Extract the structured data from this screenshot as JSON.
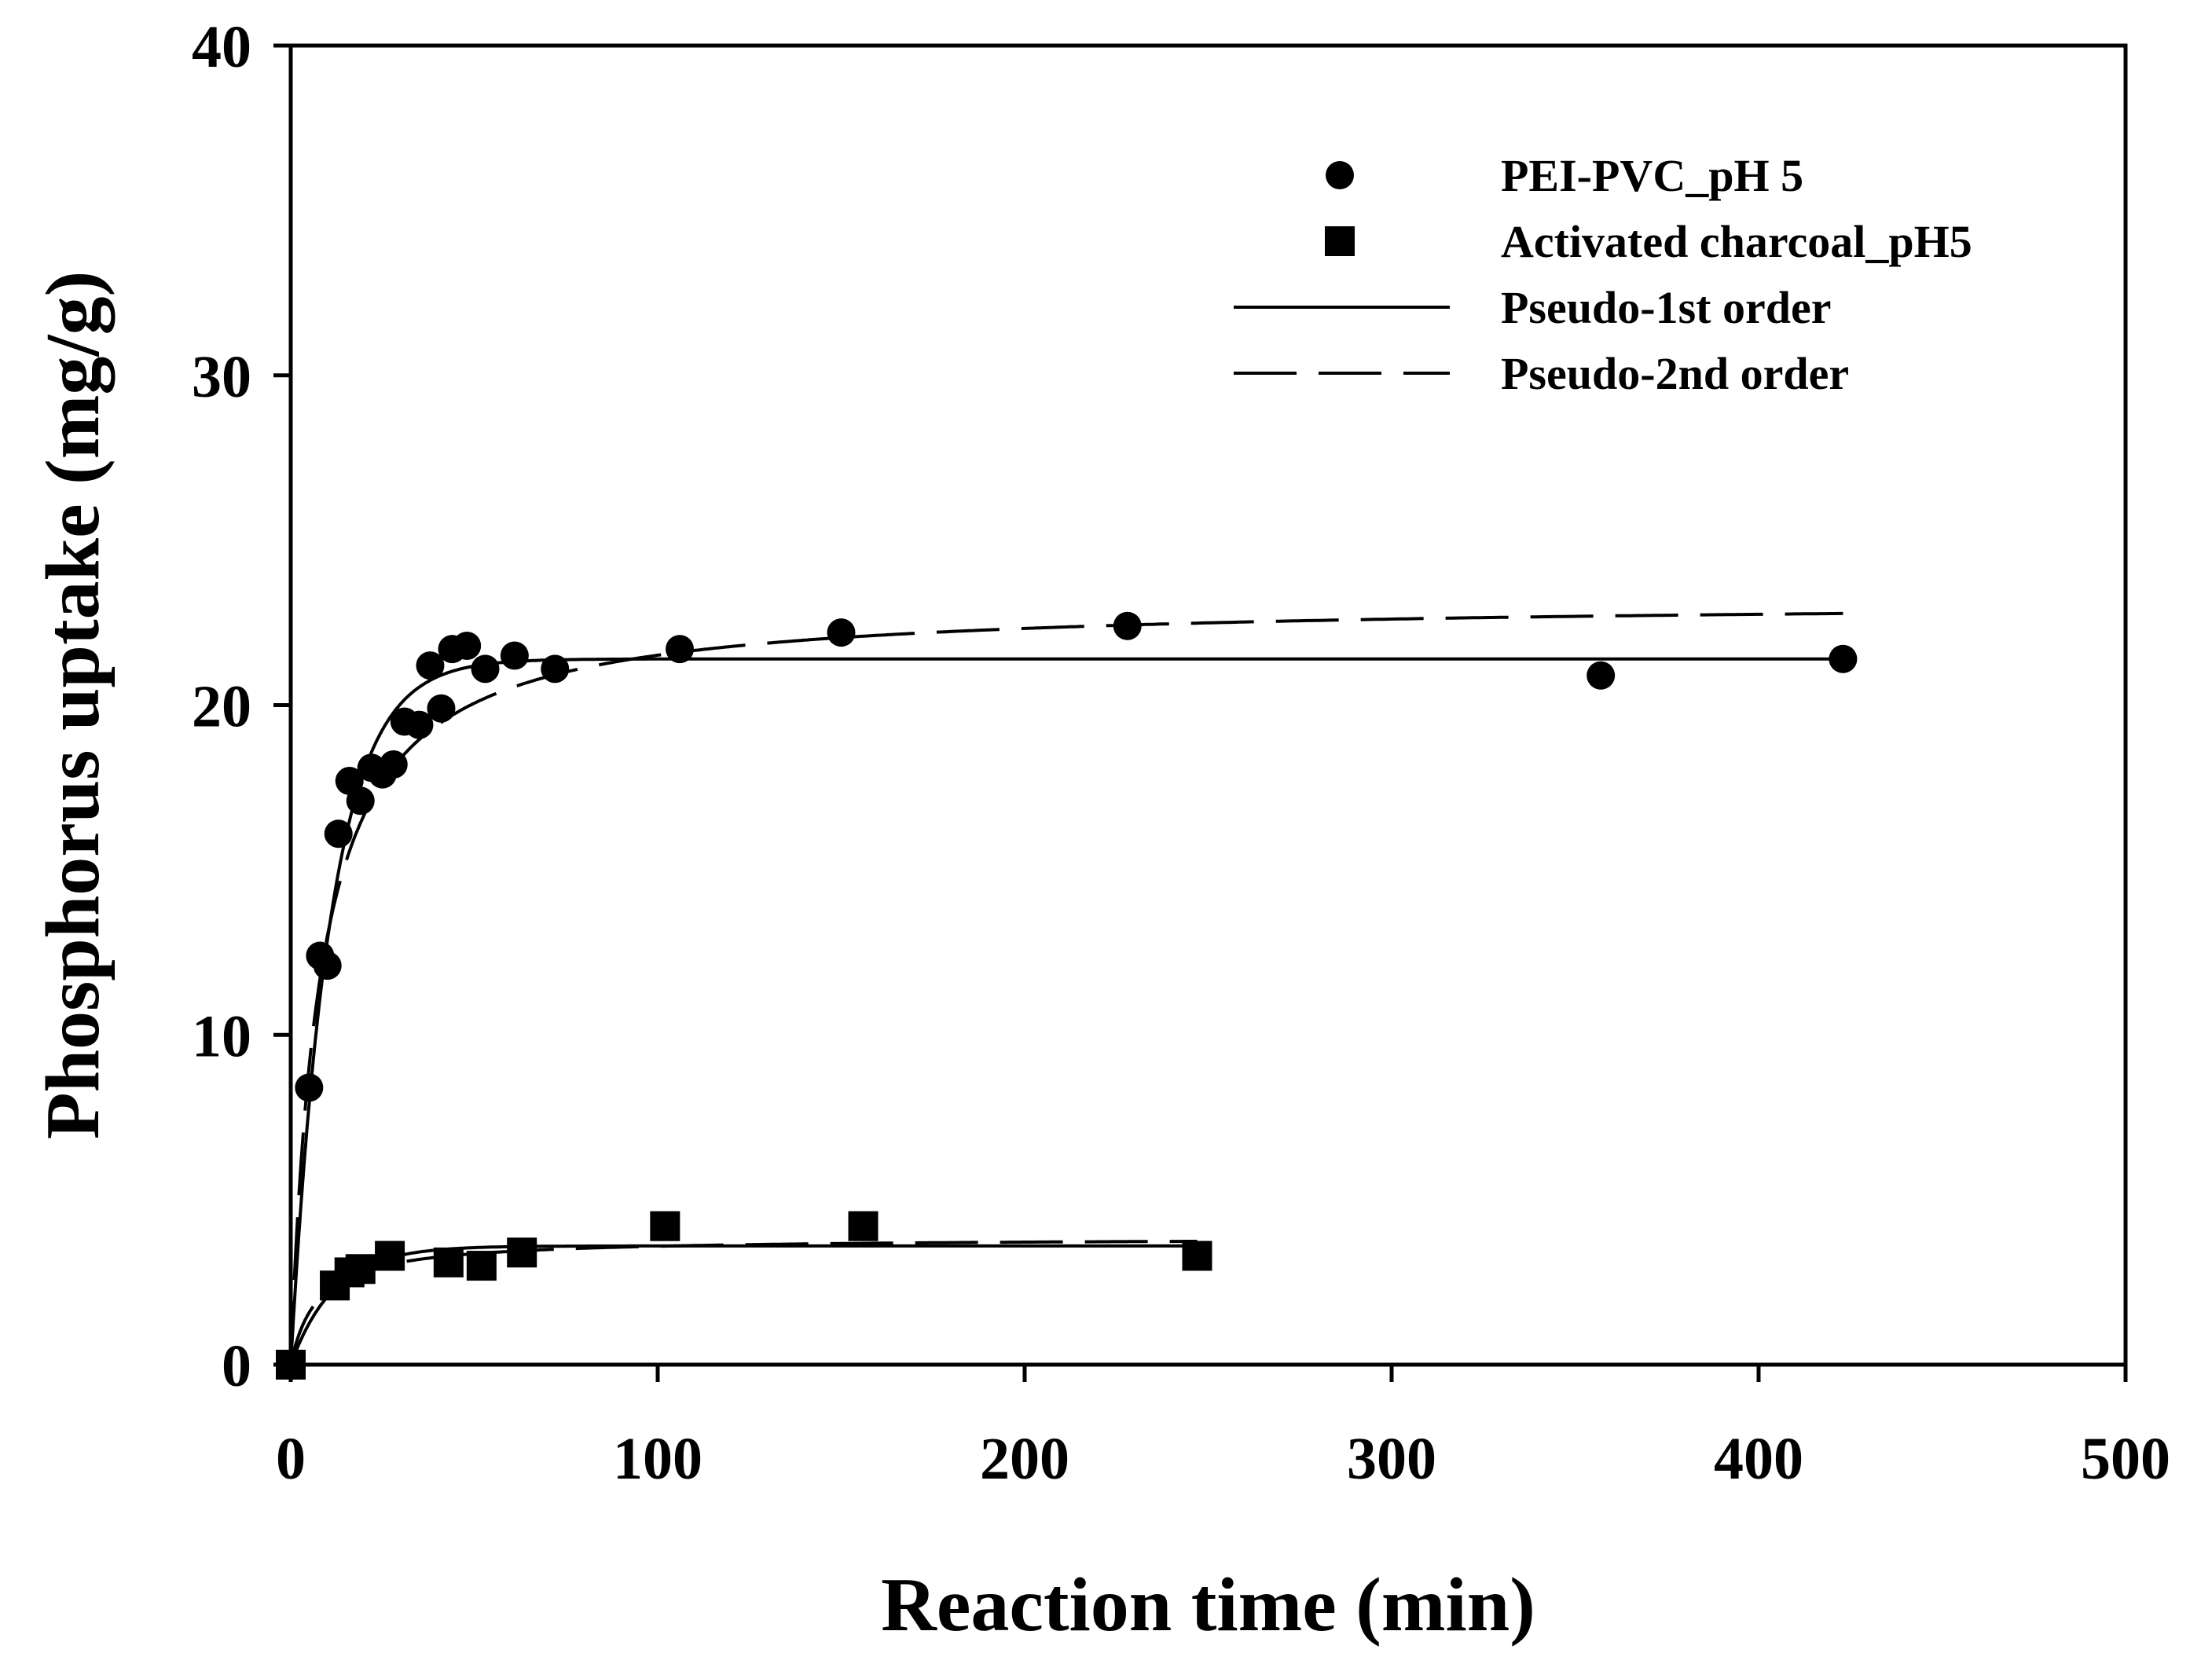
{
  "chart_data": {
    "type": "scatter",
    "title": "",
    "xlabel": "Reaction time (min)",
    "ylabel": "Phosphorus uptake (mg/g)",
    "xlim": [
      0,
      500
    ],
    "ylim": [
      0,
      40
    ],
    "x_ticks": [
      0,
      100,
      200,
      300,
      400,
      500
    ],
    "y_ticks": [
      0,
      10,
      20,
      30,
      40
    ],
    "grid": false,
    "legend_position": "top-right",
    "series": [
      {
        "name": "PEI-PVC_pH 5",
        "marker": "circle",
        "color": "#000000",
        "points": [
          {
            "x": 0,
            "y": 0
          },
          {
            "x": 5,
            "y": 8.4
          },
          {
            "x": 8,
            "y": 12.4
          },
          {
            "x": 10,
            "y": 12.1
          },
          {
            "x": 13,
            "y": 16.1
          },
          {
            "x": 16,
            "y": 17.7
          },
          {
            "x": 19,
            "y": 17.1
          },
          {
            "x": 22,
            "y": 18.1
          },
          {
            "x": 25,
            "y": 17.9
          },
          {
            "x": 28,
            "y": 18.2
          },
          {
            "x": 31,
            "y": 19.5
          },
          {
            "x": 35,
            "y": 19.4
          },
          {
            "x": 38,
            "y": 21.2
          },
          {
            "x": 41,
            "y": 19.9
          },
          {
            "x": 44,
            "y": 21.7
          },
          {
            "x": 48,
            "y": 21.8
          },
          {
            "x": 53,
            "y": 21.1
          },
          {
            "x": 61,
            "y": 21.5
          },
          {
            "x": 72,
            "y": 21.1
          },
          {
            "x": 106,
            "y": 21.7
          },
          {
            "x": 150,
            "y": 22.2
          },
          {
            "x": 228,
            "y": 22.4
          },
          {
            "x": 357,
            "y": 20.9
          },
          {
            "x": 423,
            "y": 21.4
          }
        ]
      },
      {
        "name": "Activated charcoal_pH5",
        "marker": "square",
        "color": "#000000",
        "points": [
          {
            "x": 0,
            "y": 0
          },
          {
            "x": 12,
            "y": 2.4
          },
          {
            "x": 16,
            "y": 2.8
          },
          {
            "x": 19,
            "y": 2.9
          },
          {
            "x": 27,
            "y": 3.3
          },
          {
            "x": 43,
            "y": 3.1
          },
          {
            "x": 52,
            "y": 3.0
          },
          {
            "x": 63,
            "y": 3.4
          },
          {
            "x": 102,
            "y": 4.2
          },
          {
            "x": 156,
            "y": 4.2
          },
          {
            "x": 247,
            "y": 3.3
          }
        ]
      }
    ],
    "fits": [
      {
        "name": "Pseudo-1st order",
        "style": "solid",
        "color": "#000000",
        "curves": [
          {
            "for_series": "PEI-PVC_pH 5",
            "model": "pseudo-first-order",
            "qe": 21.4,
            "k": 0.092,
            "x_range": [
              0,
              423
            ]
          },
          {
            "for_series": "Activated charcoal_pH5",
            "model": "pseudo-first-order",
            "qe": 3.6,
            "k": 0.085,
            "x_range": [
              0,
              247
            ]
          }
        ]
      },
      {
        "name": "Pseudo-2nd order",
        "style": "dashed",
        "color": "#000000",
        "curves": [
          {
            "for_series": "PEI-PVC_pH 5",
            "model": "pseudo-second-order",
            "qe": 23.2,
            "k": 0.0055,
            "x_range": [
              0,
              423
            ]
          },
          {
            "for_series": "Activated charcoal_pH5",
            "model": "pseudo-second-order",
            "qe": 3.85,
            "k": 0.036,
            "x_range": [
              0,
              247
            ]
          }
        ]
      }
    ]
  }
}
